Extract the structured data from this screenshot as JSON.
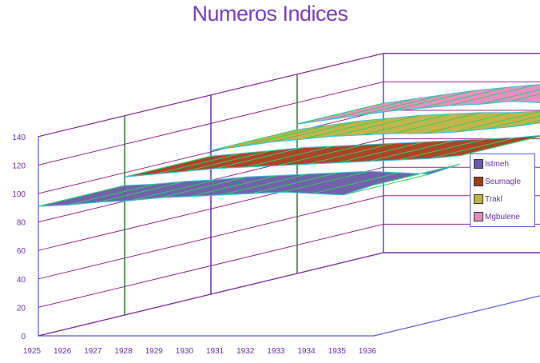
{
  "chart_data": {
    "type": "area",
    "style": "3d-surface",
    "title": "Numeros Indices",
    "xlabel": "",
    "ylabel": "",
    "ylim": [
      0,
      140
    ],
    "y_ticks": [
      "0",
      "20",
      "40",
      "60",
      "80",
      "100",
      "120",
      "140"
    ],
    "categories": [
      "1925",
      "1926",
      "1927",
      "1928",
      "1929",
      "1930",
      "1931",
      "1932",
      "1933",
      "1934",
      "1935",
      "1936"
    ],
    "grid": true,
    "legend_position": "right",
    "series": [
      {
        "name": "Istmeh",
        "color": "#6a5aa8",
        "values": [
          91,
          92,
          94,
          95,
          97,
          98,
          99,
          100,
          101,
          100,
          99,
          106
        ]
      },
      {
        "name": "Seumagle",
        "color": "#a83a1c",
        "values": [
          97,
          99,
          101,
          103,
          104,
          105,
          106,
          107,
          108,
          109,
          110,
          112
        ]
      },
      {
        "name": "Trakl",
        "color": "#c2b040",
        "values": [
          101,
          104,
          107,
          109,
          111,
          112,
          113,
          113,
          114,
          116,
          118,
          121
        ]
      },
      {
        "name": "Mgbulene",
        "color": "#e889c4",
        "values": [
          105,
          108,
          111,
          114,
          116,
          118,
          119,
          121,
          120,
          124,
          128,
          132
        ]
      }
    ]
  }
}
